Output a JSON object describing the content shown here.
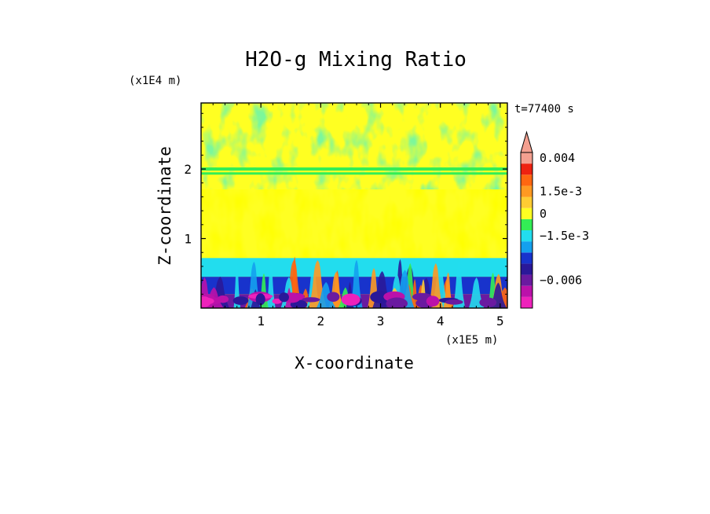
{
  "chart_data": {
    "type": "heatmap",
    "title": "H2O-g Mixing Ratio",
    "xlabel": "X-coordinate",
    "ylabel": "Z-coordinate",
    "x_unit": "(x1E5 m)",
    "y_unit": "(x1E4 m)",
    "time_label": "t=77400 s",
    "x_range": [
      0,
      5.12
    ],
    "y_range": [
      0,
      2.95
    ],
    "x_ticks": [
      "1",
      "2",
      "3",
      "4",
      "5"
    ],
    "y_ticks": [
      "1",
      "2"
    ],
    "colorbar": {
      "levels": [
        -0.009,
        -0.0075,
        -0.006,
        -0.0045,
        -0.003,
        -0.0023,
        -0.0015,
        -0.0008,
        0,
        0.0008,
        0.0015,
        0.0023,
        0.003,
        0.0037
      ],
      "colors": [
        "#ee22bb",
        "#bb11aa",
        "#6a1aa0",
        "#2a1899",
        "#1833cc",
        "#14a0ee",
        "#22ddee",
        "#33ee55",
        "#ffff22",
        "#ffcc33",
        "#ff9922",
        "#ff6611",
        "#ee2211",
        "#f4a090"
      ],
      "labels": [
        {
          "text": "0.004",
          "value": 0.0037
        },
        {
          "text": "1.5e-3",
          "value": 0.0015
        },
        {
          "text": "0",
          "value": 0
        },
        {
          "text": "−1.5e-3",
          "value": -0.0015
        },
        {
          "text": "−0.006",
          "value": -0.006
        }
      ],
      "extend": "max"
    },
    "grid": false
  }
}
